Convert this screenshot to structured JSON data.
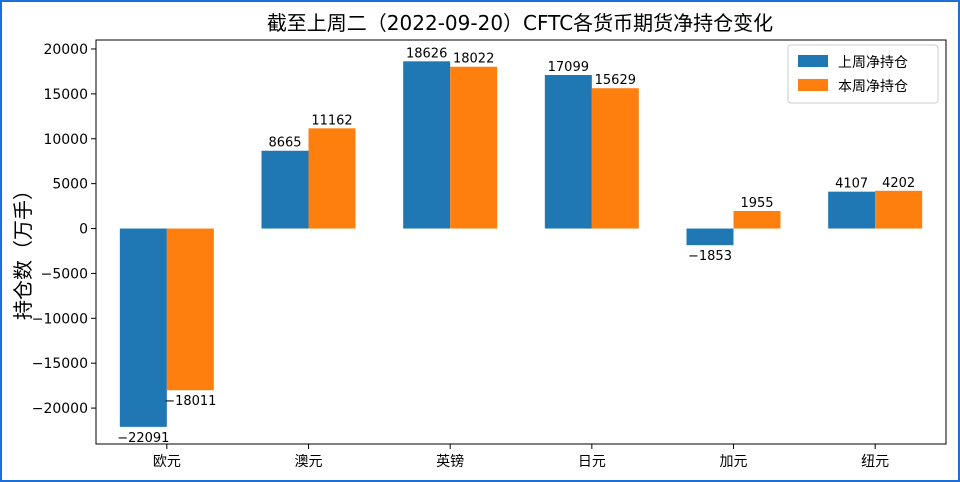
{
  "chart_data": {
    "type": "bar",
    "title": "截至上周二（2022-09-20）CFTC各货币期货净持仓变化",
    "xlabel": "",
    "ylabel": "持仓数（万手）",
    "categories": [
      "欧元",
      "澳元",
      "英镑",
      "日元",
      "加元",
      "纽元"
    ],
    "series": [
      {
        "name": "上周净持仓",
        "color": "#1f77b4",
        "values": [
          -22091,
          8665,
          18626,
          17099,
          -1853,
          4107
        ]
      },
      {
        "name": "本周净持仓",
        "color": "#ff7f0e",
        "values": [
          -18011,
          11162,
          18022,
          15629,
          1955,
          4202
        ]
      }
    ],
    "ylim": [
      -24000,
      21000
    ],
    "yticks": [
      20000,
      15000,
      10000,
      5000,
      0,
      -5000,
      -10000,
      -15000,
      -20000
    ],
    "ytick_labels": [
      "20000",
      "15000",
      "10000",
      "5000",
      "0",
      "−5000",
      "−10000",
      "−15000",
      "−20000"
    ],
    "value_labels": [
      [
        "−22091",
        "8665",
        "18626",
        "17099",
        "−1853",
        "4107"
      ],
      [
        "−18011",
        "11162",
        "18022",
        "15629",
        "1955",
        "4202"
      ]
    ],
    "legend_position": "top-right",
    "grid": false
  }
}
